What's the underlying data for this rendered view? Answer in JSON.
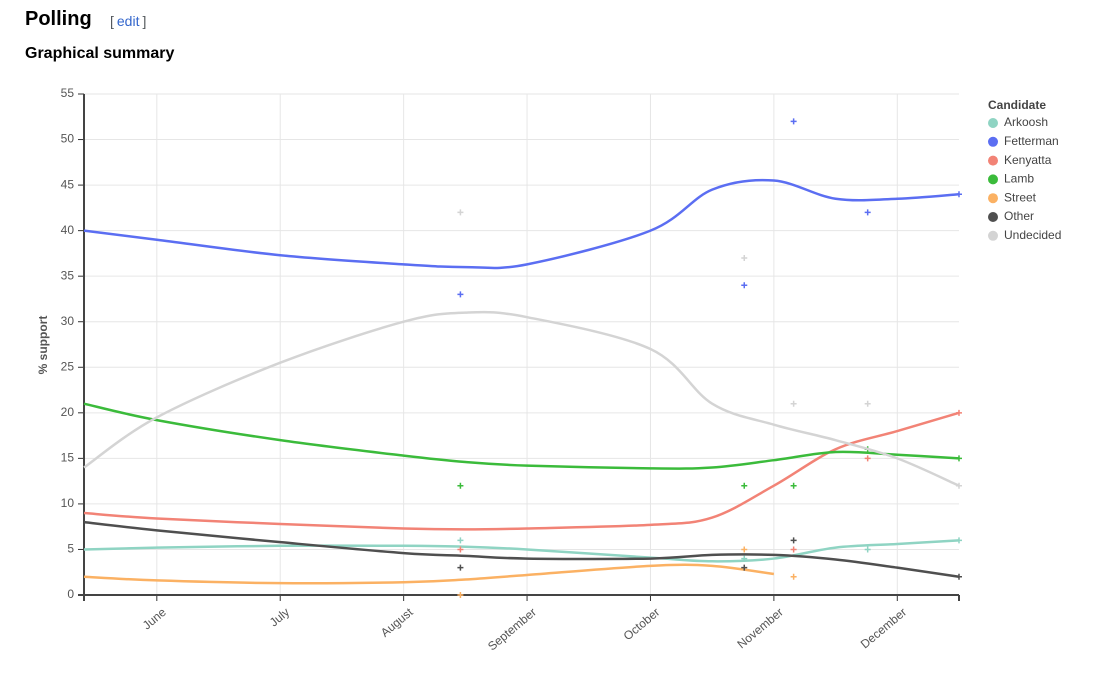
{
  "header": {
    "title": "Polling",
    "edit": [
      "[",
      "edit",
      "]"
    ],
    "subtitle": "Graphical summary"
  },
  "chart_data": {
    "type": "line",
    "y_label": "% support",
    "legend_title": "Candidate",
    "legend": "right",
    "grid": true,
    "ylim": [
      0,
      55
    ],
    "yticks": [
      0,
      5,
      10,
      15,
      20,
      25,
      30,
      35,
      40,
      45,
      50,
      55
    ],
    "xlim": [
      5.41,
      12.5
    ],
    "xticks": [
      {
        "value": 6,
        "label": "June"
      },
      {
        "value": 7,
        "label": "July"
      },
      {
        "value": 8,
        "label": "August"
      },
      {
        "value": 9,
        "label": "September"
      },
      {
        "value": 10,
        "label": "October"
      },
      {
        "value": 11,
        "label": "November"
      },
      {
        "value": 12,
        "label": "December"
      }
    ],
    "poll_x": [
      8.46,
      10.76,
      11.16,
      11.76,
      12.5
    ],
    "trend_x": [
      5.41,
      6,
      7,
      8,
      8.5,
      9,
      10,
      10.5,
      11,
      11.5,
      12,
      12.5
    ],
    "series": [
      {
        "name": "Arkoosh",
        "color": "#8fd4c3",
        "values": [
          6,
          4,
          null,
          5,
          6
        ],
        "trend": [
          5,
          5.2,
          5.4,
          5.4,
          5.3,
          5,
          4.1,
          3.7,
          4,
          5.2,
          5.6,
          6
        ]
      },
      {
        "name": "Fetterman",
        "color": "#5b6ef2",
        "values": [
          33,
          34,
          52,
          42,
          44
        ],
        "trend": [
          40,
          39,
          37.3,
          36.3,
          36,
          36.3,
          40,
          44.5,
          45.5,
          43.5,
          43.5,
          44
        ]
      },
      {
        "name": "Kenyatta",
        "color": "#f28376",
        "values": [
          5,
          null,
          5,
          15,
          20
        ],
        "trend": [
          9,
          8.4,
          7.8,
          7.3,
          7.2,
          7.3,
          7.7,
          8.5,
          12,
          16,
          18,
          20
        ]
      },
      {
        "name": "Lamb",
        "color": "#3bbb3b",
        "values": [
          12,
          12,
          12,
          16,
          15
        ],
        "trend": [
          21,
          19.2,
          17,
          15.3,
          14.6,
          14.2,
          13.9,
          14,
          14.8,
          15.7,
          15.4,
          15
        ]
      },
      {
        "name": "Street",
        "color": "#fbb163",
        "values": [
          0,
          5,
          2,
          null,
          null
        ],
        "trend": [
          2,
          1.6,
          1.3,
          1.4,
          1.7,
          2.2,
          3.2,
          3.2,
          2.3,
          null,
          null,
          null
        ]
      },
      {
        "name": "Other",
        "color": "#4f4f4f",
        "values": [
          3,
          3,
          6,
          null,
          2
        ],
        "trend": [
          8,
          7.1,
          5.8,
          4.6,
          4.3,
          4,
          4,
          4.4,
          4.4,
          3.9,
          3,
          2
        ]
      },
      {
        "name": "Undecided",
        "color": "#d4d4d4",
        "values": [
          42,
          37,
          21,
          21,
          12
        ],
        "trend": [
          14,
          19.5,
          25.5,
          30,
          31,
          30.5,
          27,
          21,
          18.7,
          17,
          15,
          12
        ]
      }
    ]
  }
}
